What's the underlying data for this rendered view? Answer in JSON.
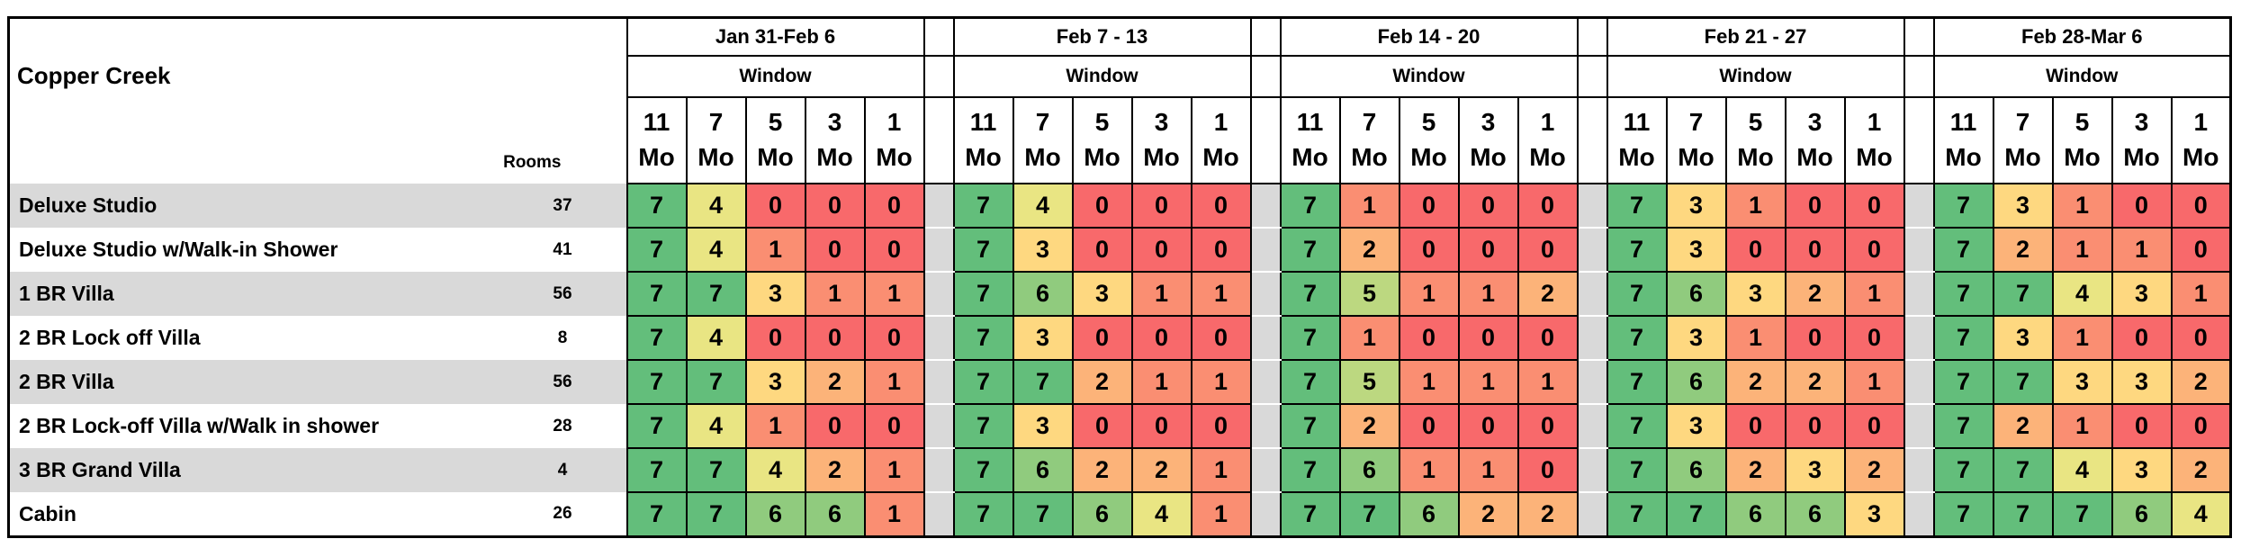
{
  "table": {
    "title": "Copper Creek",
    "rooms_header": "Rooms",
    "window_label": "Window",
    "week_blocks": [
      {
        "date_range": "Jan 31-Feb 6"
      },
      {
        "date_range": "Feb 7 - 13"
      },
      {
        "date_range": "Feb 14 - 20"
      },
      {
        "date_range": "Feb 21 - 27"
      },
      {
        "date_range": "Feb 28-Mar 6"
      }
    ],
    "window_columns": [
      "11\nMo",
      "7\nMo",
      "5\nMo",
      "3\nMo",
      "1\nMo"
    ],
    "room_types": [
      {
        "name": "Deluxe Studio",
        "rooms": 37,
        "availability": [
          [
            7,
            4,
            0,
            0,
            0
          ],
          [
            7,
            4,
            0,
            0,
            0
          ],
          [
            7,
            1,
            0,
            0,
            0
          ],
          [
            7,
            3,
            1,
            0,
            0
          ],
          [
            7,
            3,
            1,
            0,
            0
          ]
        ]
      },
      {
        "name": "Deluxe Studio w/Walk-in Shower",
        "rooms": 41,
        "availability": [
          [
            7,
            4,
            1,
            0,
            0
          ],
          [
            7,
            3,
            0,
            0,
            0
          ],
          [
            7,
            2,
            0,
            0,
            0
          ],
          [
            7,
            3,
            0,
            0,
            0
          ],
          [
            7,
            2,
            1,
            1,
            0
          ]
        ]
      },
      {
        "name": "1 BR Villa",
        "rooms": 56,
        "availability": [
          [
            7,
            7,
            3,
            1,
            1
          ],
          [
            7,
            6,
            3,
            1,
            1
          ],
          [
            7,
            5,
            1,
            1,
            2
          ],
          [
            7,
            6,
            3,
            2,
            1
          ],
          [
            7,
            7,
            4,
            3,
            1
          ]
        ]
      },
      {
        "name": "2 BR Lock off Villa",
        "rooms": 8,
        "availability": [
          [
            7,
            4,
            0,
            0,
            0
          ],
          [
            7,
            3,
            0,
            0,
            0
          ],
          [
            7,
            1,
            0,
            0,
            0
          ],
          [
            7,
            3,
            1,
            0,
            0
          ],
          [
            7,
            3,
            1,
            0,
            0
          ]
        ]
      },
      {
        "name": "2 BR Villa",
        "rooms": 56,
        "availability": [
          [
            7,
            7,
            3,
            2,
            1
          ],
          [
            7,
            7,
            2,
            1,
            1
          ],
          [
            7,
            5,
            1,
            1,
            1
          ],
          [
            7,
            6,
            2,
            2,
            1
          ],
          [
            7,
            7,
            3,
            3,
            2
          ]
        ]
      },
      {
        "name": "2 BR Lock-off Villa w/Walk in shower",
        "rooms": 28,
        "availability": [
          [
            7,
            4,
            1,
            0,
            0
          ],
          [
            7,
            3,
            0,
            0,
            0
          ],
          [
            7,
            2,
            0,
            0,
            0
          ],
          [
            7,
            3,
            0,
            0,
            0
          ],
          [
            7,
            2,
            1,
            0,
            0
          ]
        ]
      },
      {
        "name": "3 BR Grand Villa",
        "rooms": 4,
        "availability": [
          [
            7,
            7,
            4,
            2,
            1
          ],
          [
            7,
            6,
            2,
            2,
            1
          ],
          [
            7,
            6,
            1,
            1,
            0
          ],
          [
            7,
            6,
            2,
            3,
            2
          ],
          [
            7,
            7,
            4,
            3,
            2
          ]
        ]
      },
      {
        "name": "Cabin",
        "rooms": 26,
        "availability": [
          [
            7,
            7,
            6,
            6,
            1
          ],
          [
            7,
            7,
            6,
            4,
            1
          ],
          [
            7,
            7,
            6,
            2,
            2
          ],
          [
            7,
            7,
            6,
            6,
            3
          ],
          [
            7,
            7,
            7,
            6,
            4
          ]
        ]
      }
    ]
  },
  "colors": {
    "border": "#000000",
    "background": "#FFFFFF",
    "label_alt_row": "#D9D9D9",
    "spacer": "#D9D9D9",
    "scale_min": "#F8696B",
    "scale_mid": "#FFEB84",
    "scale_max": "#63BE7B"
  },
  "chart_data": {
    "type": "heatmap",
    "title": "Copper Creek",
    "rows": [
      "Deluxe Studio",
      "Deluxe Studio w/Walk-in Shower",
      "1 BR Villa",
      "2 BR Lock off Villa",
      "2 BR Villa",
      "2 BR Lock-off Villa w/Walk in shower",
      "3 BR Grand Villa",
      "Cabin"
    ],
    "row_room_counts": [
      37,
      41,
      56,
      8,
      56,
      28,
      4,
      26
    ],
    "column_groups": [
      "Jan 31-Feb 6",
      "Feb 7 - 13",
      "Feb 14 - 20",
      "Feb 21 - 27",
      "Feb 28-Mar 6"
    ],
    "column_group_sublabel": "Window",
    "columns_per_group": [
      "11 Mo",
      "7 Mo",
      "5 Mo",
      "3 Mo",
      "1 Mo"
    ],
    "values": [
      [
        7,
        4,
        0,
        0,
        0,
        7,
        4,
        0,
        0,
        0,
        7,
        1,
        0,
        0,
        0,
        7,
        3,
        1,
        0,
        0,
        7,
        3,
        1,
        0,
        0
      ],
      [
        7,
        4,
        1,
        0,
        0,
        7,
        3,
        0,
        0,
        0,
        7,
        2,
        0,
        0,
        0,
        7,
        3,
        0,
        0,
        0,
        7,
        2,
        1,
        1,
        0
      ],
      [
        7,
        7,
        3,
        1,
        1,
        7,
        6,
        3,
        1,
        1,
        7,
        5,
        1,
        1,
        2,
        7,
        6,
        3,
        2,
        1,
        7,
        7,
        4,
        3,
        1
      ],
      [
        7,
        4,
        0,
        0,
        0,
        7,
        3,
        0,
        0,
        0,
        7,
        1,
        0,
        0,
        0,
        7,
        3,
        1,
        0,
        0,
        7,
        3,
        1,
        0,
        0
      ],
      [
        7,
        7,
        3,
        2,
        1,
        7,
        7,
        2,
        1,
        1,
        7,
        5,
        1,
        1,
        1,
        7,
        6,
        2,
        2,
        1,
        7,
        7,
        3,
        3,
        2
      ],
      [
        7,
        4,
        1,
        0,
        0,
        7,
        3,
        0,
        0,
        0,
        7,
        2,
        0,
        0,
        0,
        7,
        3,
        0,
        0,
        0,
        7,
        2,
        1,
        0,
        0
      ],
      [
        7,
        7,
        4,
        2,
        1,
        7,
        6,
        2,
        2,
        1,
        7,
        6,
        1,
        1,
        0,
        7,
        6,
        2,
        3,
        2,
        7,
        7,
        4,
        3,
        2
      ],
      [
        7,
        7,
        6,
        6,
        1,
        7,
        7,
        6,
        4,
        1,
        7,
        7,
        6,
        2,
        2,
        7,
        7,
        6,
        6,
        3,
        7,
        7,
        7,
        6,
        4
      ]
    ],
    "color_scale": {
      "min_value": 0,
      "min_color": "#F8696B",
      "mid_value": 3.5,
      "mid_color": "#FFEB84",
      "max_value": 7,
      "max_color": "#63BE7B"
    },
    "legend_position": "none",
    "grid": true
  }
}
